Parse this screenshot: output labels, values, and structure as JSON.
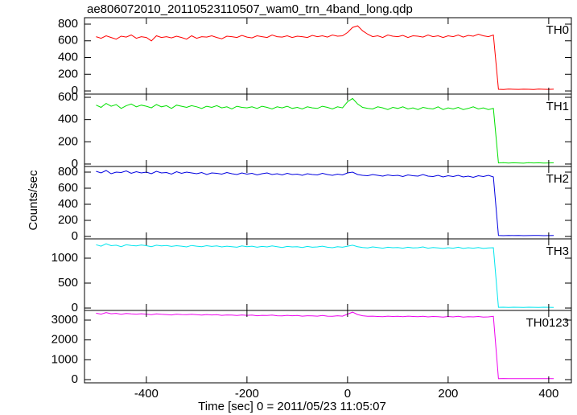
{
  "chart_data": {
    "type": "line",
    "title": "ae806072010_20110523110507_wam0_trn_4band_long.qdp",
    "x_label": "Time [sec] 0 = 2011/05/23 11:05:07",
    "y_label": "Counts/sec",
    "xlim": [
      -523,
      445
    ],
    "xticks": [
      -400,
      -200,
      0,
      200,
      400
    ],
    "x": [
      -500,
      -490,
      -480,
      -470,
      -460,
      -450,
      -440,
      -430,
      -420,
      -410,
      -400,
      -390,
      -380,
      -370,
      -360,
      -350,
      -340,
      -330,
      -320,
      -310,
      -300,
      -290,
      -280,
      -270,
      -260,
      -250,
      -240,
      -230,
      -220,
      -210,
      -200,
      -190,
      -180,
      -170,
      -160,
      -150,
      -140,
      -130,
      -120,
      -110,
      -100,
      -90,
      -80,
      -70,
      -60,
      -50,
      -40,
      -30,
      -20,
      -10,
      0,
      10,
      20,
      30,
      40,
      50,
      60,
      70,
      80,
      90,
      100,
      110,
      120,
      130,
      140,
      150,
      160,
      170,
      180,
      190,
      200,
      210,
      220,
      230,
      240,
      250,
      260,
      270,
      280,
      290,
      300,
      310,
      320,
      330,
      340,
      350,
      360,
      370,
      380,
      390,
      400,
      410
    ],
    "series": [
      {
        "name": "TH0",
        "color": "#ff0000",
        "ylim": [
          -38,
          877
        ],
        "yticks": [
          0,
          200,
          400,
          600,
          800
        ],
        "values": [
          650,
          630,
          660,
          640,
          620,
          655,
          645,
          670,
          630,
          650,
          640,
          600,
          660,
          640,
          650,
          635,
          655,
          640,
          620,
          660,
          630,
          650,
          645,
          660,
          640,
          625,
          655,
          650,
          640,
          665,
          645,
          635,
          660,
          650,
          640,
          670,
          650,
          645,
          660,
          640,
          655,
          650,
          640,
          665,
          650,
          660,
          645,
          670,
          655,
          660,
          700,
          760,
          780,
          720,
          680,
          650,
          660,
          640,
          670,
          655,
          650,
          665,
          640,
          660,
          655,
          645,
          670,
          650,
          660,
          640,
          660,
          650,
          670,
          645,
          665,
          655,
          680,
          660,
          650,
          670,
          20,
          18,
          22,
          20,
          19,
          21,
          20,
          18,
          22,
          20,
          19,
          21
        ]
      },
      {
        "name": "TH1",
        "color": "#00e000",
        "ylim": [
          -22,
          629
        ],
        "yticks": [
          0,
          200,
          400,
          600
        ],
        "values": [
          530,
          510,
          545,
          520,
          535,
          500,
          525,
          540,
          515,
          530,
          520,
          505,
          535,
          515,
          525,
          500,
          530,
          520,
          510,
          525,
          515,
          500,
          520,
          510,
          525,
          505,
          515,
          495,
          520,
          510,
          505,
          515,
          500,
          520,
          510,
          495,
          515,
          505,
          520,
          500,
          510,
          495,
          515,
          505,
          500,
          520,
          510,
          495,
          515,
          505,
          560,
          590,
          540,
          510,
          500,
          495,
          515,
          505,
          490,
          510,
          500,
          515,
          495,
          505,
          490,
          510,
          500,
          495,
          515,
          490,
          505,
          495,
          510,
          490,
          500,
          515,
          495,
          505,
          490,
          500,
          10,
          12,
          9,
          11,
          10,
          8,
          12,
          10,
          11,
          9,
          10,
          11
        ]
      },
      {
        "name": "TH2",
        "color": "#0000e0",
        "ylim": [
          -30,
          870
        ],
        "yticks": [
          0,
          200,
          400,
          600,
          800
        ],
        "values": [
          810,
          790,
          820,
          780,
          800,
          795,
          815,
          785,
          805,
          790,
          800,
          780,
          810,
          790,
          795,
          775,
          805,
          785,
          800,
          790,
          780,
          795,
          770,
          790,
          785,
          775,
          795,
          780,
          770,
          790,
          775,
          785,
          765,
          780,
          790,
          770,
          780,
          765,
          785,
          770,
          775,
          760,
          780,
          770,
          765,
          785,
          770,
          760,
          775,
          765,
          790,
          800,
          770,
          760,
          755,
          770,
          760,
          750,
          765,
          755,
          760,
          745,
          765,
          755,
          750,
          770,
          750,
          745,
          760,
          740,
          755,
          745,
          760,
          740,
          750,
          735,
          755,
          745,
          760,
          740,
          12,
          10,
          13,
          11,
          12,
          10,
          11,
          13,
          12,
          10,
          11,
          12
        ]
      },
      {
        "name": "TH3",
        "color": "#00e5ee",
        "ylim": [
          -48,
          1387
        ],
        "yticks": [
          0,
          500,
          1000
        ],
        "values": [
          1270,
          1240,
          1290,
          1250,
          1260,
          1230,
          1270,
          1255,
          1245,
          1265,
          1250,
          1230,
          1260,
          1245,
          1255,
          1235,
          1250,
          1240,
          1225,
          1255,
          1240,
          1230,
          1250,
          1235,
          1245,
          1225,
          1240,
          1230,
          1220,
          1245,
          1230,
          1240,
          1220,
          1235,
          1225,
          1245,
          1230,
          1215,
          1235,
          1225,
          1230,
          1215,
          1235,
          1220,
          1225,
          1240,
          1220,
          1210,
          1230,
          1220,
          1240,
          1260,
          1230,
          1215,
          1205,
          1225,
          1215,
          1200,
          1220,
          1210,
          1215,
          1200,
          1220,
          1205,
          1210,
          1225,
          1200,
          1215,
          1205,
          1195,
          1210,
          1200,
          1220,
          1195,
          1210,
          1200,
          1215,
          1195,
          1205,
          1210,
          15,
          17,
          14,
          16,
          15,
          13,
          16,
          15,
          14,
          16,
          15,
          14
        ]
      },
      {
        "name": "TH0123",
        "color": "#ee00ee",
        "ylim": [
          -162,
          3486
        ],
        "yticks": [
          0,
          1000,
          2000,
          3000
        ],
        "values": [
          3350,
          3300,
          3380,
          3320,
          3340,
          3290,
          3330,
          3310,
          3300,
          3320,
          3300,
          3270,
          3310,
          3290,
          3280,
          3260,
          3300,
          3280,
          3270,
          3290,
          3270,
          3250,
          3280,
          3260,
          3270,
          3240,
          3260,
          3250,
          3230,
          3260,
          3240,
          3250,
          3220,
          3240,
          3230,
          3250,
          3220,
          3210,
          3240,
          3220,
          3230,
          3200,
          3220,
          3210,
          3200,
          3230,
          3200,
          3190,
          3220,
          3200,
          3300,
          3400,
          3280,
          3220,
          3190,
          3200,
          3180,
          3170,
          3200,
          3180,
          3190,
          3170,
          3200,
          3180,
          3170,
          3190,
          3160,
          3180,
          3170,
          3150,
          3180,
          3160,
          3190,
          3150,
          3170,
          3160,
          3180,
          3150,
          3160,
          3190,
          50,
          55,
          48,
          52,
          50,
          47,
          53,
          50,
          49,
          52,
          51,
          48
        ]
      }
    ]
  }
}
